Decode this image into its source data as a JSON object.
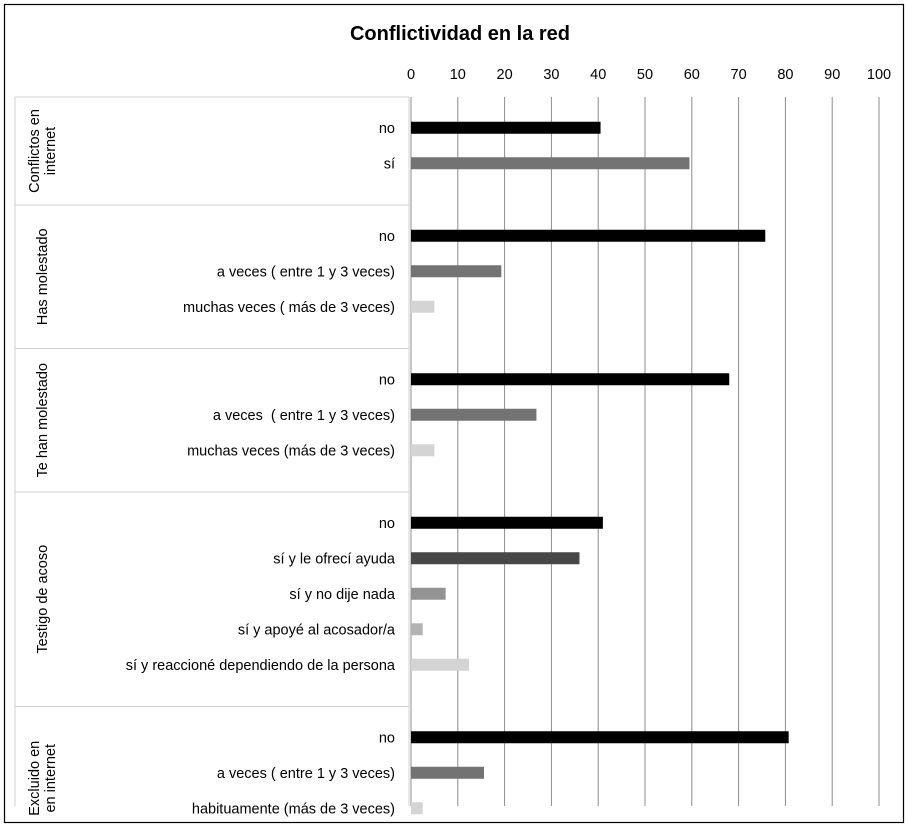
{
  "chart_data": {
    "type": "bar",
    "orientation": "horizontal",
    "title": "Conflictividad en la red",
    "xlim": [
      0,
      100
    ],
    "x_ticks": [
      "0",
      "10",
      "20",
      "30",
      "40",
      "50",
      "60",
      "70",
      "80",
      "90",
      "100"
    ],
    "grid": true,
    "groups": [
      {
        "name": "Conflictos en internet",
        "name_lines": [
          "Conflictos en",
          "internet"
        ],
        "bars": [
          {
            "label": "no",
            "value": 40.5,
            "color": "#000000"
          },
          {
            "label": "sí",
            "value": 59.5,
            "color": "#737373"
          }
        ]
      },
      {
        "name": "Has molestado",
        "name_lines": [
          "Has molestado"
        ],
        "bars": [
          {
            "label": "no",
            "value": 75.7,
            "color": "#000000"
          },
          {
            "label": "a veces ( entre 1 y 3 veces)",
            "value": 19.3,
            "color": "#737373"
          },
          {
            "label": "muchas veces ( más de 3 veces)",
            "value": 5.0,
            "color": "#d4d4d4"
          }
        ]
      },
      {
        "name": "Te han molestado",
        "name_lines": [
          "Te han molestado"
        ],
        "bars": [
          {
            "label": "no",
            "value": 68.0,
            "color": "#000000"
          },
          {
            "label": "a veces  ( entre 1 y 3 veces)",
            "value": 26.8,
            "color": "#737373"
          },
          {
            "label": "muchas veces (más de 3 veces)",
            "value": 5.0,
            "color": "#d4d4d4"
          }
        ]
      },
      {
        "name": "Testigo de acoso",
        "name_lines": [
          "Testigo de acoso"
        ],
        "bars": [
          {
            "label": "no",
            "value": 41.0,
            "color": "#000000"
          },
          {
            "label": "sí y le ofrecí ayuda",
            "value": 36.0,
            "color": "#474747"
          },
          {
            "label": "sí y no dije nada",
            "value": 7.4,
            "color": "#939393"
          },
          {
            "label": "sí y apoyé al acosador/a",
            "value": 2.5,
            "color": "#b3b3b3"
          },
          {
            "label": "sí y reaccioné dependiendo de la persona",
            "value": 12.4,
            "color": "#d4d4d4"
          }
        ]
      },
      {
        "name": "Excluido en en internet",
        "name_lines": [
          "Excluido en",
          "en internet"
        ],
        "bars": [
          {
            "label": "no",
            "value": 80.7,
            "color": "#000000"
          },
          {
            "label": "a veces ( entre 1 y 3 veces)",
            "value": 15.6,
            "color": "#737373"
          },
          {
            "label": "habituamente (más de 3 veces)",
            "value": 2.5,
            "color": "#d4d4d4"
          }
        ]
      }
    ]
  }
}
